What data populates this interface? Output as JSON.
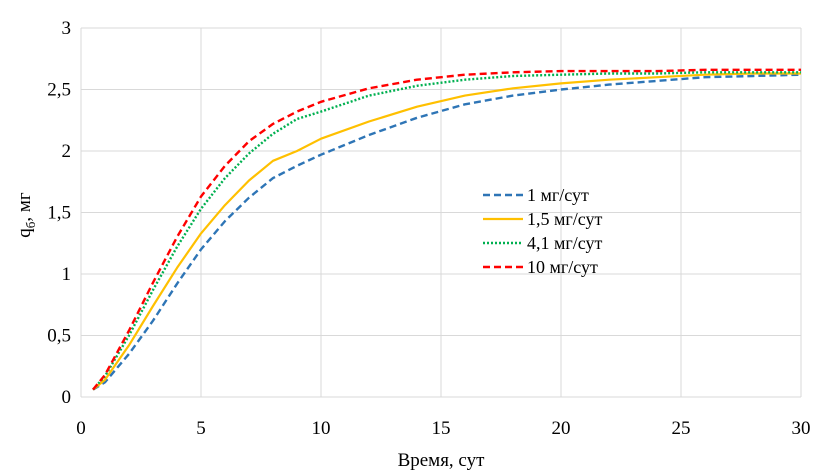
{
  "chart_data": {
    "type": "line",
    "xlabel": "Время, сут",
    "ylabel": "q",
    "ylabel_subscript": "б",
    "ylabel_suffix": ", мг",
    "xlim": [
      0,
      30
    ],
    "ylim": [
      0,
      3
    ],
    "xticks": [
      0,
      5,
      10,
      15,
      20,
      25,
      30
    ],
    "yticks": [
      0,
      0.5,
      1,
      1.5,
      2,
      2.5,
      3
    ],
    "xtick_labels": [
      "0",
      "5",
      "10",
      "15",
      "20",
      "25",
      "30"
    ],
    "ytick_labels": [
      "0",
      "0,5",
      "1",
      "1,5",
      "2",
      "2,5",
      "3"
    ],
    "grid": true,
    "legend_position": "right-center",
    "series": [
      {
        "name": "1 мг/сут",
        "color": "#2e75b6",
        "dash": "dashed",
        "x": [
          0.5,
          1,
          2,
          3,
          4,
          5,
          6,
          7,
          8,
          9,
          10,
          12,
          14,
          16,
          18,
          20,
          22,
          24,
          26,
          28,
          30
        ],
        "y": [
          0.06,
          0.12,
          0.35,
          0.62,
          0.92,
          1.2,
          1.43,
          1.62,
          1.78,
          1.88,
          1.97,
          2.13,
          2.27,
          2.38,
          2.45,
          2.5,
          2.54,
          2.57,
          2.6,
          2.61,
          2.62
        ]
      },
      {
        "name": "1,5 мг/сут",
        "color": "#ffc000",
        "dash": "solid",
        "x": [
          0.5,
          1,
          2,
          3,
          4,
          5,
          6,
          7,
          8,
          9,
          10,
          12,
          14,
          16,
          18,
          20,
          22,
          24,
          26,
          28,
          30
        ],
        "y": [
          0.06,
          0.14,
          0.42,
          0.74,
          1.05,
          1.33,
          1.56,
          1.76,
          1.92,
          2.0,
          2.1,
          2.24,
          2.36,
          2.45,
          2.51,
          2.55,
          2.58,
          2.6,
          2.62,
          2.63,
          2.63
        ]
      },
      {
        "name": "4,1 мг/сут",
        "color": "#00b050",
        "dash": "dotted",
        "x": [
          0.5,
          1,
          2,
          3,
          4,
          5,
          6,
          7,
          8,
          9,
          10,
          12,
          14,
          16,
          18,
          20,
          22,
          24,
          26,
          28,
          30
        ],
        "y": [
          0.06,
          0.17,
          0.5,
          0.87,
          1.22,
          1.53,
          1.78,
          1.98,
          2.14,
          2.26,
          2.32,
          2.45,
          2.53,
          2.58,
          2.61,
          2.62,
          2.63,
          2.63,
          2.64,
          2.64,
          2.64
        ]
      },
      {
        "name": "10 мг/сут",
        "color": "#ff0000",
        "dash": "dashed",
        "x": [
          0.5,
          1,
          2,
          3,
          4,
          5,
          6,
          7,
          8,
          9,
          10,
          12,
          14,
          16,
          18,
          20,
          22,
          24,
          26,
          28,
          30
        ],
        "y": [
          0.06,
          0.18,
          0.54,
          0.93,
          1.3,
          1.63,
          1.88,
          2.08,
          2.22,
          2.32,
          2.4,
          2.51,
          2.58,
          2.62,
          2.64,
          2.65,
          2.65,
          2.65,
          2.66,
          2.66,
          2.66
        ]
      }
    ]
  }
}
